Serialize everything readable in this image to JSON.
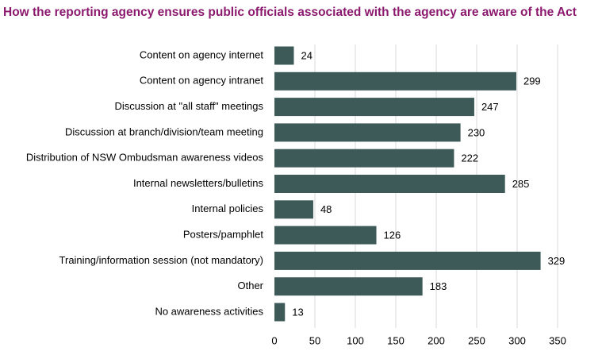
{
  "chart_data": {
    "type": "bar",
    "orientation": "horizontal",
    "title": "How the reporting agency ensures public officials associated with the agency are aware of the Act",
    "xlabel": "",
    "ylabel": "",
    "categories": [
      "Content on agency internet",
      "Content on agency intranet",
      "Discussion at \"all staff\" meetings",
      "Discussion at branch/division/team meeting",
      "Distribution of NSW Ombudsman awareness videos",
      "Internal newsletters/bulletins",
      "Internal policies",
      "Posters/pamphlet",
      "Training/information session (not mandatory)",
      "Other",
      "No awareness activities"
    ],
    "values": [
      24,
      299,
      247,
      230,
      222,
      285,
      48,
      126,
      329,
      183,
      13
    ],
    "xlim": [
      0,
      350
    ],
    "xticks": [
      0,
      50,
      100,
      150,
      200,
      250,
      300,
      350
    ],
    "grid": true,
    "legend": "none",
    "bar_color": "#3d5a58",
    "title_color": "#8b1a6e"
  }
}
